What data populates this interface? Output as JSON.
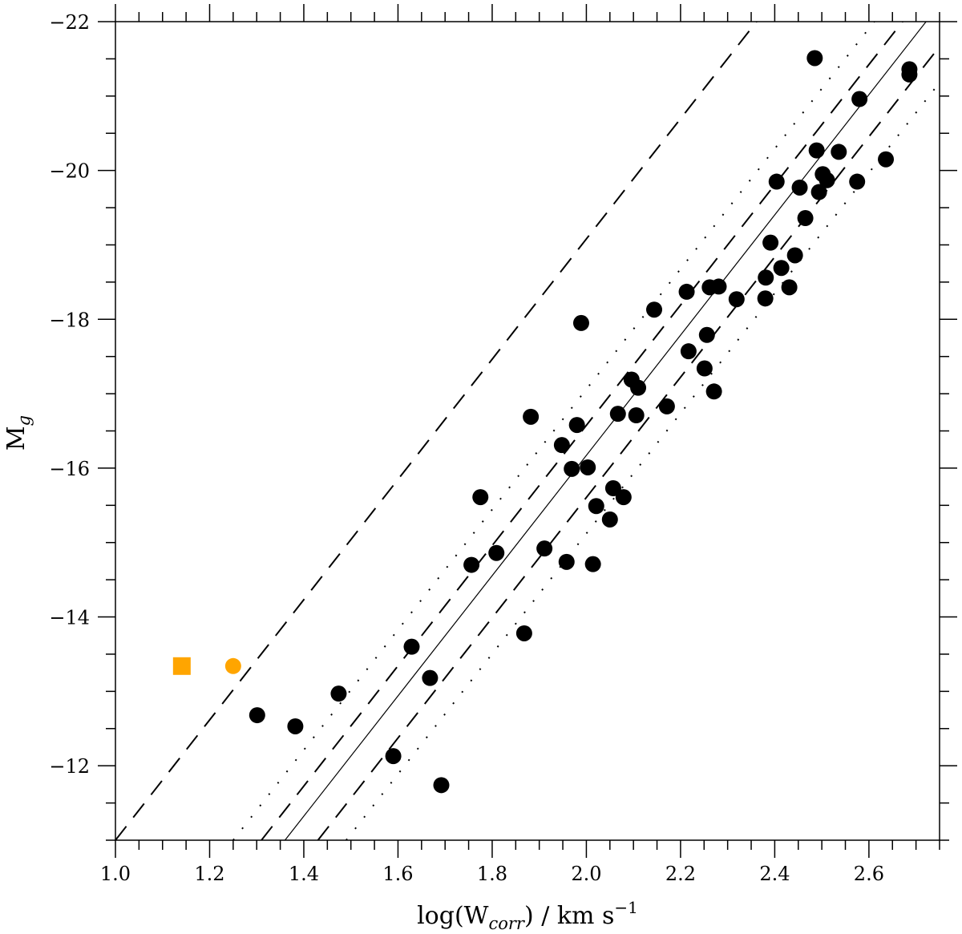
{
  "chart_data": {
    "type": "scatter",
    "title": "",
    "xlabel_main": "log(W",
    "xlabel_sub": "corr",
    "xlabel_tail": ") / km s",
    "xlabel_sup": "−1",
    "ylabel_main": "M",
    "ylabel_sub": "g",
    "xlim": [
      1.0,
      2.75
    ],
    "ylim": [
      -11,
      -22
    ],
    "y_inverted": true,
    "x_ticks": [
      1.0,
      1.2,
      1.4,
      1.6,
      1.8,
      2.0,
      2.2,
      2.4,
      2.6
    ],
    "x_tick_labels": [
      "1.0",
      "1.2",
      "1.4",
      "1.6",
      "1.8",
      "2.0",
      "2.2",
      "2.4",
      "2.6"
    ],
    "y_ticks": [
      -22,
      -20,
      -18,
      -16,
      -14,
      -12
    ],
    "y_tick_labels": [
      "−22",
      "−20",
      "−18",
      "−16",
      "−14",
      "−12"
    ],
    "grid": false,
    "colors": {
      "points": "#000000",
      "highlight": "#FFA500",
      "lines": "#000000"
    },
    "lines": [
      {
        "style": "solid",
        "x_at_M_minus11": 1.36,
        "slope": -8.08
      },
      {
        "style": "dashed",
        "x_at_M_minus11": 1.31,
        "slope": -8.08
      },
      {
        "style": "dashed",
        "x_at_M_minus11": 1.43,
        "slope": -8.08
      },
      {
        "style": "dotted",
        "x_at_M_minus11": 1.25,
        "slope": -8.08
      },
      {
        "style": "dotted",
        "x_at_M_minus11": 1.49,
        "slope": -8.08
      },
      {
        "style": "dashed",
        "x_at_M_minus11": 1.0,
        "slope": -8.08
      }
    ],
    "series": [
      {
        "marker": "circle",
        "color": "#000000",
        "points": [
          [
            2.485,
            -21.51
          ],
          [
            2.686,
            -21.36
          ],
          [
            2.686,
            -21.29
          ],
          [
            2.58,
            -20.96
          ],
          [
            2.489,
            -20.27
          ],
          [
            2.536,
            -20.25
          ],
          [
            2.636,
            -20.15
          ],
          [
            2.502,
            -19.95
          ],
          [
            2.511,
            -19.87
          ],
          [
            2.404,
            -19.85
          ],
          [
            2.453,
            -19.77
          ],
          [
            2.494,
            -19.71
          ],
          [
            2.575,
            -19.85
          ],
          [
            2.465,
            -19.36
          ],
          [
            2.391,
            -19.03
          ],
          [
            2.443,
            -18.86
          ],
          [
            2.414,
            -18.69
          ],
          [
            2.381,
            -18.56
          ],
          [
            2.262,
            -18.43
          ],
          [
            2.281,
            -18.44
          ],
          [
            2.213,
            -18.37
          ],
          [
            2.319,
            -18.27
          ],
          [
            2.38,
            -18.28
          ],
          [
            2.431,
            -18.43
          ],
          [
            2.144,
            -18.13
          ],
          [
            1.989,
            -17.95
          ],
          [
            2.256,
            -17.79
          ],
          [
            2.217,
            -17.57
          ],
          [
            2.251,
            -17.34
          ],
          [
            2.271,
            -17.03
          ],
          [
            2.096,
            -17.19
          ],
          [
            2.11,
            -17.08
          ],
          [
            2.171,
            -16.83
          ],
          [
            2.067,
            -16.73
          ],
          [
            2.106,
            -16.71
          ],
          [
            1.882,
            -16.69
          ],
          [
            1.98,
            -16.58
          ],
          [
            1.948,
            -16.31
          ],
          [
            1.969,
            -15.99
          ],
          [
            2.003,
            -16.01
          ],
          [
            2.057,
            -15.73
          ],
          [
            2.079,
            -15.61
          ],
          [
            1.775,
            -15.61
          ],
          [
            2.021,
            -15.49
          ],
          [
            2.05,
            -15.31
          ],
          [
            1.809,
            -14.86
          ],
          [
            1.756,
            -14.7
          ],
          [
            1.911,
            -14.92
          ],
          [
            1.958,
            -14.74
          ],
          [
            2.014,
            -14.71
          ],
          [
            1.868,
            -13.78
          ],
          [
            1.629,
            -13.6
          ],
          [
            1.668,
            -13.18
          ],
          [
            1.474,
            -12.97
          ],
          [
            1.301,
            -12.68
          ],
          [
            1.382,
            -12.53
          ],
          [
            1.59,
            -12.13
          ],
          [
            1.692,
            -11.74
          ]
        ]
      },
      {
        "marker": "square",
        "color": "#FFA500",
        "points": [
          [
            1.141,
            -13.34
          ]
        ]
      },
      {
        "marker": "circle",
        "color": "#FFA500",
        "points": [
          [
            1.25,
            -13.34
          ]
        ]
      }
    ]
  }
}
